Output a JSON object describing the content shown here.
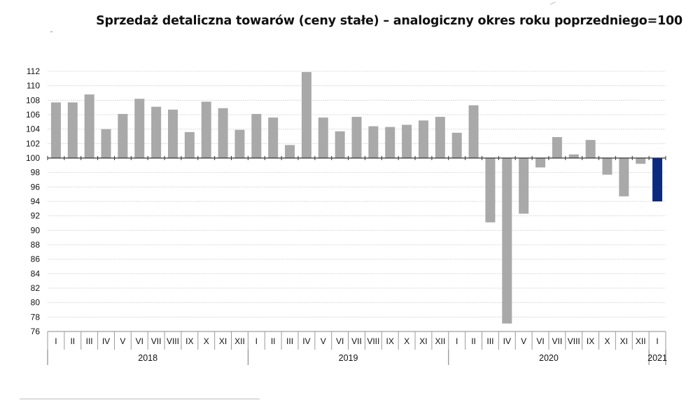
{
  "chart_data": {
    "type": "bar",
    "title": "Sprzedaż detaliczna towarów (ceny stałe) – analogiczny okres roku poprzedniego=100",
    "xlabel": "",
    "ylabel": "",
    "ylim": [
      76,
      112
    ],
    "yticks": [
      112,
      110,
      108,
      106,
      104,
      102,
      100,
      98,
      96,
      94,
      92,
      90,
      88,
      86,
      84,
      82,
      80,
      78,
      76
    ],
    "baseline": 100,
    "grid": true,
    "legend": "none",
    "categories": [
      "I",
      "II",
      "III",
      "IV",
      "V",
      "VI",
      "VII",
      "VIII",
      "IX",
      "X",
      "XI",
      "XII",
      "I",
      "II",
      "III",
      "IV",
      "V",
      "VI",
      "VII",
      "VIII",
      "IX",
      "X",
      "XI",
      "XII",
      "I",
      "II",
      "III",
      "IV",
      "V",
      "VI",
      "VII",
      "VIII",
      "IX",
      "X",
      "XI",
      "XII",
      "I"
    ],
    "years": [
      {
        "label": "2018",
        "start": 0,
        "count": 12
      },
      {
        "label": "2019",
        "start": 12,
        "count": 12
      },
      {
        "label": "2020",
        "start": 24,
        "count": 12
      },
      {
        "label": "2021",
        "start": 36,
        "count": 1
      }
    ],
    "values": [
      107.7,
      107.7,
      108.8,
      104.0,
      106.1,
      108.2,
      107.1,
      106.7,
      103.6,
      107.8,
      106.9,
      103.9,
      106.1,
      105.6,
      101.8,
      111.9,
      105.6,
      103.7,
      105.7,
      104.4,
      104.3,
      104.6,
      105.2,
      105.7,
      103.5,
      107.3,
      91.1,
      77.1,
      92.3,
      98.7,
      102.9,
      100.5,
      102.5,
      97.7,
      94.7,
      99.2,
      94.0
    ],
    "colors": {
      "bar": "#a9a9a9",
      "highlight": "#0c2a7e",
      "grid": "#dcdcdc",
      "axis": "#333333"
    },
    "highlight_index": 36
  }
}
